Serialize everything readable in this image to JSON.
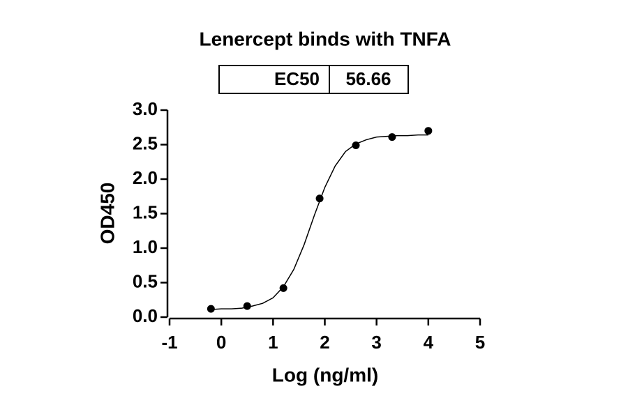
{
  "chart_data": {
    "type": "scatter",
    "title": "Lenercept binds with TNFA",
    "ec50_label": "EC50",
    "ec50": 56.66,
    "xlabel": "Log (ng/ml)",
    "ylabel": "OD450",
    "series": [
      {
        "type": "scatter",
        "color": "#000000",
        "x": [
          -0.2,
          0.5,
          1.2,
          1.9,
          2.6,
          3.3,
          4.0
        ],
        "values": [
          0.12,
          0.16,
          0.42,
          1.72,
          2.49,
          2.61,
          2.7
        ]
      },
      {
        "type": "line",
        "color": "#000000",
        "x": [
          -0.2,
          0,
          0.2,
          0.4,
          0.6,
          0.8,
          1.0,
          1.2,
          1.4,
          1.6,
          1.8,
          2.0,
          2.2,
          2.4,
          2.6,
          2.8,
          3.0,
          3.2,
          3.4,
          3.6,
          3.8,
          4.0
        ],
        "values": [
          0.11,
          0.12,
          0.12,
          0.13,
          0.16,
          0.2,
          0.28,
          0.44,
          0.69,
          1.05,
          1.48,
          1.88,
          2.19,
          2.4,
          2.51,
          2.57,
          2.61,
          2.62,
          2.63,
          2.63,
          2.64,
          2.64
        ]
      }
    ],
    "xlim": [
      -1,
      5
    ],
    "xticks": [
      -1,
      0,
      1,
      2,
      3,
      4,
      5
    ],
    "ylim": [
      0,
      3
    ],
    "yticks": [
      {
        "value": 0,
        "label": "0.0"
      },
      0.5,
      {
        "value": 1,
        "label": "1.0"
      },
      1.5,
      {
        "value": 2,
        "label": "2.0"
      },
      2.5,
      {
        "value": 3,
        "label": "3.0"
      }
    ],
    "grid": false
  }
}
